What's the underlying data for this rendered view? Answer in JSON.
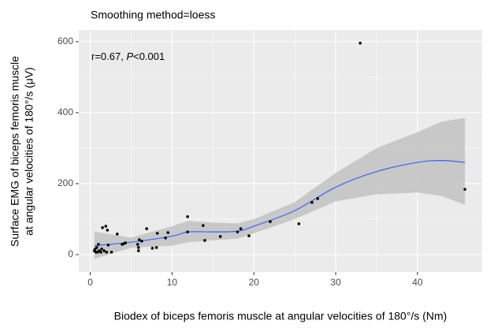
{
  "chart_data": {
    "type": "scatter",
    "title": "Smoothing method=loess",
    "annotation": {
      "prefix": "r=0.67, ",
      "italic": "P",
      "suffix": "<0.001"
    },
    "xlabel": "Biodex of biceps femoris muscle at angular velocities of 180°/s (Nm)",
    "ylabel": [
      "Surface EMG of biceps femoris muscle",
      "at angular velocities of 180°/s (μV)"
    ],
    "x": [
      0.5,
      0.6,
      0.7,
      0.8,
      0.9,
      1.0,
      1.1,
      1.3,
      1.4,
      1.5,
      1.9,
      2.1,
      1.7,
      2.0,
      2.2,
      2.6,
      3.3,
      3.9,
      4.1,
      4.3,
      5.8,
      5.9,
      5.9,
      6.0,
      6.3,
      6.9,
      7.6,
      8.1,
      8.2,
      9.2,
      9.5,
      11.9,
      11.9,
      13.8,
      14.0,
      15.9,
      18.0,
      18.4,
      19.4,
      22.0,
      25.5,
      27.1,
      27.8,
      33.0,
      45.8
    ],
    "values": [
      11,
      16,
      7,
      20,
      7,
      29,
      11,
      7,
      16,
      76,
      80,
      69,
      11,
      7,
      27,
      7,
      58,
      29,
      31,
      33,
      29,
      20,
      11,
      42,
      38,
      73,
      18,
      20,
      60,
      47,
      62,
      107,
      64,
      82,
      40,
      51,
      64,
      73,
      53,
      93,
      87,
      147,
      158,
      596,
      184
    ],
    "color": "#000000",
    "smooth": {
      "color": "#3366ff",
      "band_color": "#bfbfbf",
      "x": [
        0.5,
        5,
        10,
        12,
        15,
        18,
        20,
        25,
        30,
        35,
        40,
        43,
        45.8
      ],
      "values": [
        25,
        35,
        52,
        64,
        64,
        66,
        80,
        124,
        190,
        234,
        260,
        265,
        260
      ],
      "lower": [
        -12,
        20,
        25,
        35,
        40,
        45,
        60,
        100,
        150,
        170,
        175,
        165,
        140
      ],
      "upper": [
        65,
        48,
        80,
        95,
        90,
        88,
        100,
        148,
        230,
        300,
        345,
        375,
        385
      ]
    },
    "xlim": [
      -1.4,
      47.9
    ],
    "xticks": [
      0,
      10,
      20,
      30,
      40
    ],
    "ylim": [
      -49,
      633
    ],
    "yticks": [
      0,
      200,
      400,
      600
    ],
    "grid": true,
    "minor_grid": true
  }
}
